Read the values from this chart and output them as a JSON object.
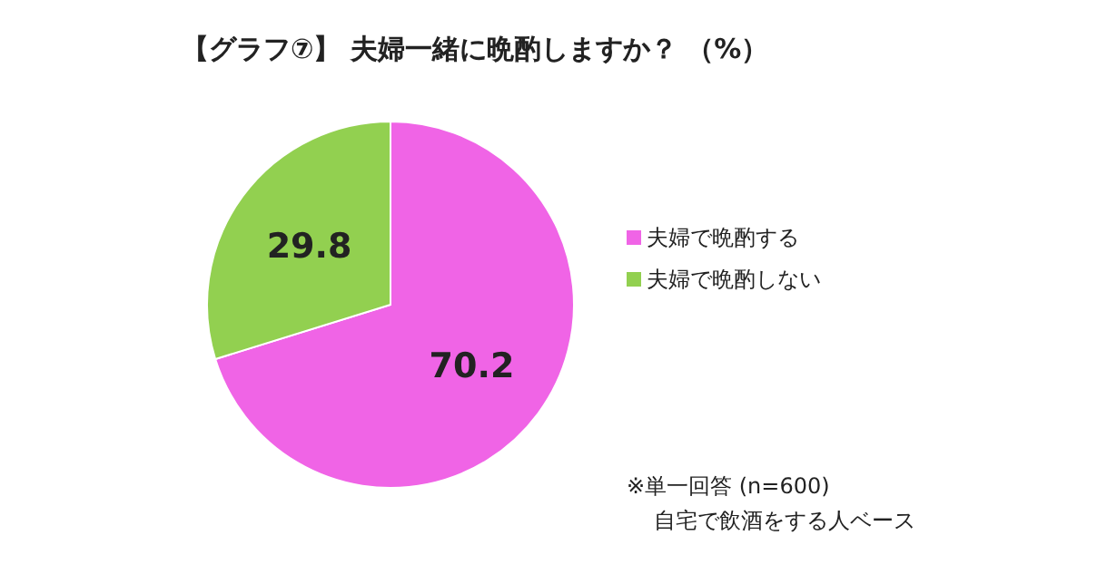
{
  "chart_data": {
    "type": "pie",
    "title": "【グラフ⑦】 夫婦一緒に晩酌しますか？ （%）",
    "categories": [
      "夫婦で晩酌する",
      "夫婦で晩酌しない"
    ],
    "values": [
      70.2,
      29.8
    ],
    "colors": [
      "#f064e6",
      "#92d050"
    ],
    "data_labels": true,
    "legend": "right",
    "annotations": [
      "※単一回答 (n=600)",
      "自宅で飲酒をする人ベース"
    ]
  }
}
